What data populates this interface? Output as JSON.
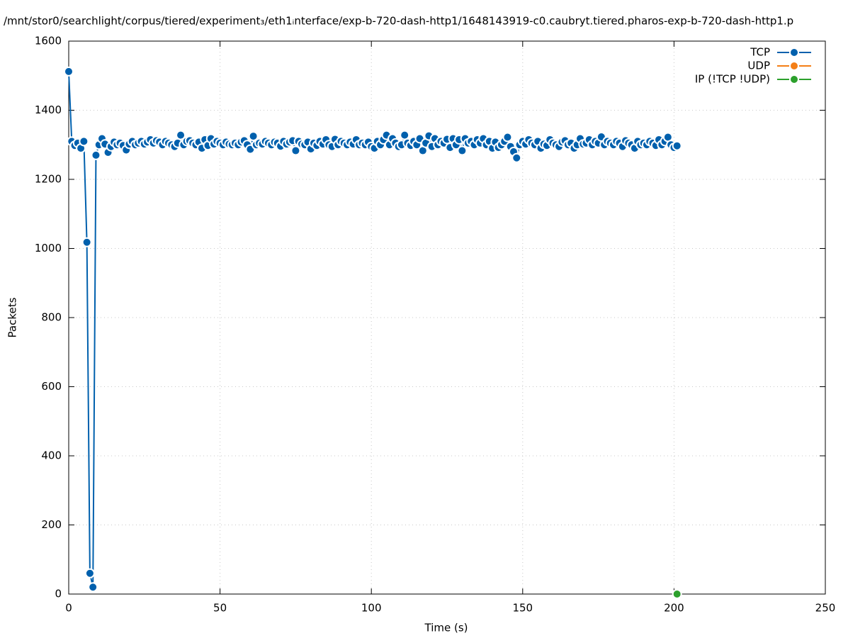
{
  "chart_data": {
    "type": "line",
    "title": "/mnt/stor0/searchlight/corpus/tiered/experiment₃/eth1ᵢnterface/exp-b-720-dash-http1/1648143919-c0.caubryt.tiered.pharos-exp-b-720-dash-http1.p",
    "xlabel": "Time (s)",
    "ylabel": "Packets",
    "xlim": [
      0,
      250
    ],
    "xticks": [
      0,
      50,
      100,
      150,
      200,
      250
    ],
    "ylim": [
      0,
      1600
    ],
    "yticks": [
      0,
      200,
      400,
      600,
      800,
      1000,
      1200,
      1400,
      1600
    ],
    "grid": true,
    "legend": "top-right",
    "series": [
      {
        "name": "TCP",
        "color": "#0060ad",
        "x": [
          0,
          1,
          2,
          3,
          4,
          5,
          6,
          7,
          8,
          9,
          10,
          11,
          12,
          13,
          14,
          15,
          16,
          17,
          18,
          19,
          20,
          21,
          22,
          23,
          24,
          25,
          26,
          27,
          28,
          29,
          30,
          31,
          32,
          33,
          34,
          35,
          36,
          37,
          38,
          39,
          40,
          41,
          42,
          43,
          44,
          45,
          46,
          47,
          48,
          49,
          50,
          51,
          52,
          53,
          54,
          55,
          56,
          57,
          58,
          59,
          60,
          61,
          62,
          63,
          64,
          65,
          66,
          67,
          68,
          69,
          70,
          71,
          72,
          73,
          74,
          75,
          76,
          77,
          78,
          79,
          80,
          81,
          82,
          83,
          84,
          85,
          86,
          87,
          88,
          89,
          90,
          91,
          92,
          93,
          94,
          95,
          96,
          97,
          98,
          99,
          100,
          101,
          102,
          103,
          104,
          105,
          106,
          107,
          108,
          109,
          110,
          111,
          112,
          113,
          114,
          115,
          116,
          117,
          118,
          119,
          120,
          121,
          122,
          123,
          124,
          125,
          126,
          127,
          128,
          129,
          130,
          131,
          132,
          133,
          134,
          135,
          136,
          137,
          138,
          139,
          140,
          141,
          142,
          143,
          144,
          145,
          146,
          147,
          148,
          149,
          150,
          151,
          152,
          153,
          154,
          155,
          156,
          157,
          158,
          159,
          160,
          161,
          162,
          163,
          164,
          165,
          166,
          167,
          168,
          169,
          170,
          171,
          172,
          173,
          174,
          175,
          176,
          177,
          178,
          179,
          180,
          181,
          182,
          183,
          184,
          185,
          186,
          187,
          188,
          189,
          190,
          191,
          192,
          193,
          194,
          195,
          196,
          197,
          198,
          199,
          200,
          201
        ],
        "values": [
          1512,
          1310,
          1298,
          1305,
          1290,
          1310,
          1018,
          60,
          20,
          1270,
          1300,
          1318,
          1302,
          1278,
          1295,
          1308,
          1300,
          1305,
          1298,
          1285,
          1302,
          1310,
          1300,
          1305,
          1310,
          1302,
          1308,
          1315,
          1305,
          1312,
          1308,
          1300,
          1310,
          1305,
          1300,
          1295,
          1305,
          1328,
          1300,
          1310,
          1312,
          1305,
          1300,
          1308,
          1290,
          1315,
          1298,
          1318,
          1302,
          1310,
          1305,
          1300,
          1308,
          1302,
          1300,
          1305,
          1300,
          1308,
          1312,
          1300,
          1287,
          1325,
          1300,
          1305,
          1302,
          1310,
          1305,
          1300,
          1308,
          1305,
          1296,
          1310,
          1302,
          1308,
          1312,
          1283,
          1310,
          1302,
          1300,
          1308,
          1288,
          1305,
          1298,
          1310,
          1302,
          1315,
          1300,
          1295,
          1316,
          1300,
          1310,
          1305,
          1300,
          1308,
          1302,
          1315,
          1300,
          1305,
          1300,
          1308,
          1295,
          1290,
          1310,
          1300,
          1315,
          1328,
          1300,
          1318,
          1305,
          1295,
          1300,
          1328,
          1305,
          1298,
          1310,
          1300,
          1318,
          1283,
          1305,
          1326,
          1295,
          1318,
          1300,
          1310,
          1305,
          1316,
          1292,
          1318,
          1300,
          1315,
          1283,
          1318,
          1305,
          1310,
          1300,
          1315,
          1305,
          1318,
          1300,
          1310,
          1290,
          1308,
          1292,
          1300,
          1310,
          1322,
          1295,
          1280,
          1262,
          1300,
          1310,
          1302,
          1315,
          1305,
          1300,
          1310,
          1290,
          1302,
          1298,
          1315,
          1305,
          1300,
          1295,
          1308,
          1312,
          1300,
          1305,
          1290,
          1300,
          1318,
          1302,
          1305,
          1315,
          1300,
          1310,
          1305,
          1323,
          1300,
          1310,
          1305,
          1300,
          1310,
          1305,
          1295,
          1312,
          1305,
          1300,
          1290,
          1310,
          1300,
          1305,
          1300,
          1310,
          1305,
          1298,
          1315,
          1300,
          1310,
          1322,
          1300,
          1292,
          1297
        ]
      },
      {
        "name": "UDP",
        "color": "#f47f16",
        "x": [],
        "values": []
      },
      {
        "name": "IP (!TCP  !UDP)",
        "color": "#2ca02c",
        "x": [
          201
        ],
        "values": [
          0
        ]
      }
    ]
  }
}
